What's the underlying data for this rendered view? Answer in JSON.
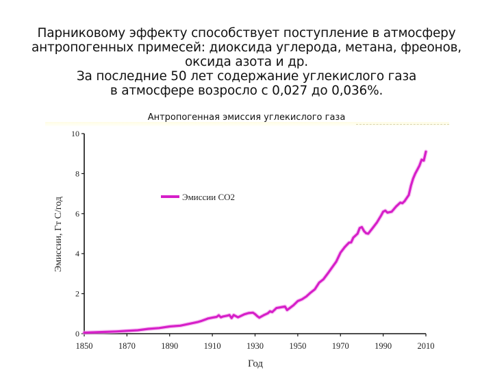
{
  "heading": {
    "lines": [
      "Парниковому эффекту способствует поступление в атмосферу",
      "антропогенных примесей: диоксида углерода, метана, фреонов,",
      "оксида азота и др.",
      "За последние 50 лет содержание углекислого газа",
      "в атмосфере возросло с 0,027 до 0,036%."
    ]
  },
  "colors": {
    "series": "#d61fc8",
    "axis": "#111111"
  },
  "chart_data": {
    "type": "line",
    "title": "Антропогенная эмиссия углекислого газа",
    "xlabel": "Год",
    "ylabel": "Эмиссии, Гт С/год",
    "xlim": [
      1850,
      2010
    ],
    "ylim": [
      0,
      10
    ],
    "x_ticks": [
      "1850",
      "1870",
      "1890",
      "1910",
      "1930",
      "1950",
      "1970",
      "1990",
      "2010"
    ],
    "y_ticks": [
      "0",
      "2",
      "4",
      "6",
      "8",
      "10"
    ],
    "grid": false,
    "legend_position": "upper-left (inside plot)",
    "series": [
      {
        "name": "Эмиссии CO2",
        "x": [
          1850,
          1855,
          1860,
          1865,
          1870,
          1875,
          1880,
          1885,
          1890,
          1895,
          1900,
          1903,
          1905,
          1907,
          1908,
          1910,
          1912,
          1913,
          1914,
          1915,
          1917,
          1918,
          1919,
          1920,
          1922,
          1925,
          1927,
          1929,
          1930,
          1931,
          1932,
          1934,
          1936,
          1937,
          1938,
          1940,
          1942,
          1944,
          1945,
          1946,
          1948,
          1950,
          1952,
          1954,
          1956,
          1958,
          1960,
          1962,
          1964,
          1966,
          1968,
          1970,
          1972,
          1974,
          1975,
          1976,
          1978,
          1979,
          1980,
          1981,
          1982,
          1983,
          1985,
          1987,
          1989,
          1990,
          1991,
          1992,
          1994,
          1996,
          1998,
          1999,
          2000,
          2002,
          2003,
          2004,
          2005,
          2006,
          2007,
          2008,
          2009,
          2010
        ],
        "values": [
          0.05,
          0.07,
          0.09,
          0.11,
          0.14,
          0.17,
          0.24,
          0.28,
          0.36,
          0.4,
          0.51,
          0.58,
          0.64,
          0.72,
          0.76,
          0.8,
          0.84,
          0.92,
          0.82,
          0.86,
          0.9,
          0.93,
          0.78,
          0.93,
          0.82,
          0.97,
          1.03,
          1.05,
          0.98,
          0.88,
          0.8,
          0.92,
          1.02,
          1.12,
          1.08,
          1.28,
          1.32,
          1.36,
          1.18,
          1.26,
          1.42,
          1.63,
          1.72,
          1.86,
          2.05,
          2.22,
          2.55,
          2.72,
          3.0,
          3.3,
          3.6,
          4.05,
          4.33,
          4.55,
          4.56,
          4.8,
          5.0,
          5.28,
          5.33,
          5.13,
          5.02,
          5.0,
          5.27,
          5.55,
          5.9,
          6.1,
          6.15,
          6.05,
          6.1,
          6.35,
          6.55,
          6.52,
          6.62,
          6.93,
          7.4,
          7.75,
          8.0,
          8.2,
          8.4,
          8.7,
          8.65,
          9.1
        ]
      }
    ]
  }
}
